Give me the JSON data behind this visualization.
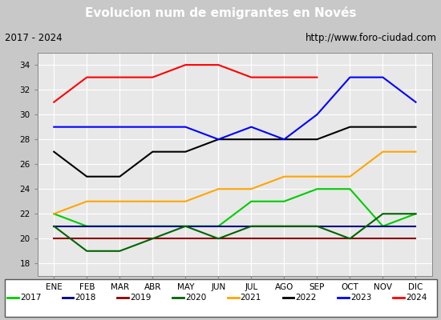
{
  "title": "Evolucion num de emigrantes en Novés",
  "subtitle_left": "2017 - 2024",
  "subtitle_right": "http://www.foro-ciudad.com",
  "months": [
    "ENE",
    "FEB",
    "MAR",
    "ABR",
    "MAY",
    "JUN",
    "JUL",
    "AGO",
    "SEP",
    "OCT",
    "NOV",
    "DIC"
  ],
  "ylim": [
    17,
    35
  ],
  "yticks": [
    18,
    20,
    22,
    24,
    26,
    28,
    30,
    32,
    34
  ],
  "series": {
    "2017": {
      "values": [
        22,
        21,
        21,
        21,
        21,
        21,
        23,
        23,
        24,
        24,
        21,
        22
      ],
      "color": "#00cc00",
      "lw": 1.5
    },
    "2018": {
      "values": [
        21,
        21,
        21,
        21,
        21,
        21,
        21,
        21,
        21,
        21,
        21,
        21
      ],
      "color": "#000080",
      "lw": 1.5
    },
    "2019": {
      "values": [
        20,
        20,
        20,
        20,
        20,
        20,
        20,
        20,
        20,
        20,
        20,
        20
      ],
      "color": "#8b0000",
      "lw": 1.5
    },
    "2020": {
      "values": [
        21,
        19,
        19,
        20,
        21,
        20,
        21,
        21,
        21,
        20,
        22,
        22
      ],
      "color": "#006400",
      "lw": 1.5
    },
    "2021": {
      "values": [
        22,
        23,
        23,
        23,
        23,
        24,
        24,
        25,
        25,
        25,
        27,
        27
      ],
      "color": "#ffa500",
      "lw": 1.5
    },
    "2022": {
      "values": [
        27,
        25,
        25,
        27,
        27,
        28,
        28,
        28,
        28,
        29,
        29,
        29
      ],
      "color": "#000000",
      "lw": 1.5
    },
    "2023": {
      "values": [
        29,
        29,
        29,
        29,
        29,
        28,
        29,
        28,
        30,
        33,
        33,
        31
      ],
      "color": "#0000ff",
      "lw": 1.5
    },
    "2024": {
      "values": [
        31,
        33,
        33,
        33,
        34,
        34,
        33,
        33,
        33,
        null,
        null,
        null
      ],
      "color": "#ff0000",
      "lw": 1.5
    }
  },
  "legend_order": [
    "2017",
    "2018",
    "2019",
    "2020",
    "2021",
    "2022",
    "2023",
    "2024"
  ],
  "bg_color": "#c8c8c8",
  "plot_bg_color": "#e8e8e8",
  "title_bg_color": "#4169e1",
  "title_text_color": "#ffffff",
  "grid_color": "#ffffff",
  "header_bg": "#ffffff"
}
